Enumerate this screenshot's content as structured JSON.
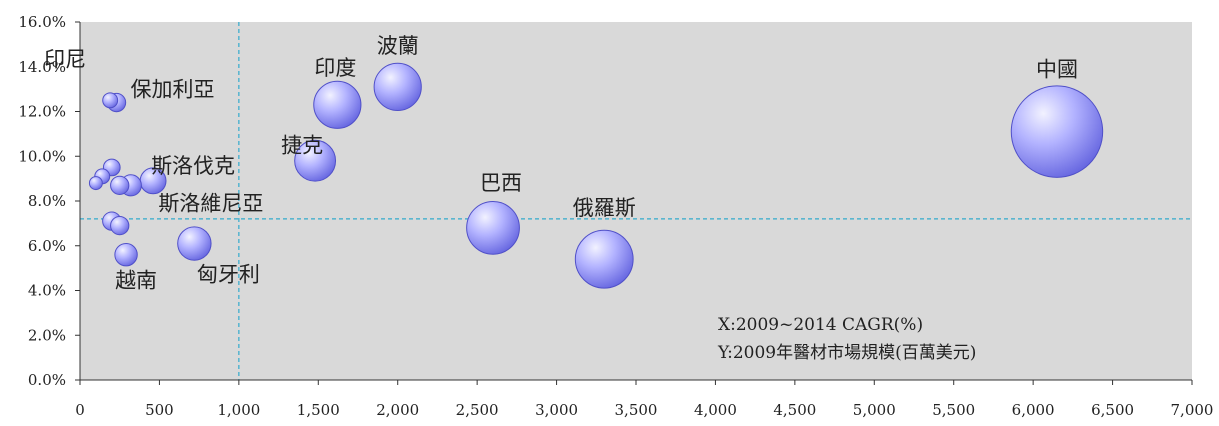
{
  "chart_data": {
    "type": "scatter",
    "bubble": true,
    "xlim": [
      0,
      7000
    ],
    "ylim": [
      0,
      16
    ],
    "x_ticks": [
      0,
      500,
      1000,
      1500,
      2000,
      2500,
      3000,
      3500,
      4000,
      4500,
      5000,
      5500,
      6000,
      6500,
      7000
    ],
    "x_tick_labels": [
      "0",
      "500",
      "1,000",
      "1,500",
      "2,000",
      "2,500",
      "3,000",
      "3,500",
      "4,000",
      "4,500",
      "5,000",
      "5,500",
      "6,000",
      "6,500",
      "7,000"
    ],
    "y_ticks": [
      0,
      2,
      4,
      6,
      8,
      10,
      12,
      14,
      16
    ],
    "y_tick_labels": [
      "0.0%",
      "2.0%",
      "4.0%",
      "6.0%",
      "8.0%",
      "10.0%",
      "12.0%",
      "14.0%",
      "16.0%"
    ],
    "ref_lines": {
      "x": 1000,
      "y": 7.2
    },
    "grid": false,
    "plot_background": "#d9d9d9",
    "bubble_color": "#9999ff",
    "ref_line_color": "#33aacc",
    "points": [
      {
        "label": "中國",
        "x": 6150,
        "y": 11.1,
        "size": 15
      },
      {
        "label": "俄羅斯",
        "x": 3300,
        "y": 5.4,
        "size": 6
      },
      {
        "label": "巴西",
        "x": 2600,
        "y": 6.8,
        "size": 5
      },
      {
        "label": "波蘭",
        "x": 2000,
        "y": 13.1,
        "size": 4
      },
      {
        "label": "印度",
        "x": 1620,
        "y": 12.3,
        "size": 4
      },
      {
        "label": "捷克",
        "x": 1480,
        "y": 9.8,
        "size": 3
      },
      {
        "label": "匈牙利",
        "x": 720,
        "y": 6.1,
        "size": 2
      },
      {
        "label": "斯洛伐克",
        "x": 460,
        "y": 8.9,
        "size": 1.2
      },
      {
        "label": "斯洛維尼亞",
        "x": 320,
        "y": 8.7,
        "size": 0.8
      },
      {
        "label": "越南",
        "x": 290,
        "y": 5.6,
        "size": 0.9
      },
      {
        "label": "保加利亞",
        "x": 230,
        "y": 12.4,
        "size": 0.6
      },
      {
        "label": "印尼",
        "x": 190,
        "y": 12.5,
        "size": 0.4
      },
      {
        "label": "",
        "x": 100,
        "y": 8.8,
        "size": 0.3
      },
      {
        "label": "",
        "x": 140,
        "y": 9.1,
        "size": 0.4
      },
      {
        "label": "",
        "x": 200,
        "y": 9.5,
        "size": 0.5
      },
      {
        "label": "",
        "x": 250,
        "y": 8.7,
        "size": 0.6
      },
      {
        "label": "",
        "x": 200,
        "y": 7.1,
        "size": 0.6
      },
      {
        "label": "",
        "x": 250,
        "y": 6.9,
        "size": 0.6
      }
    ],
    "annotations": [
      "X:2009~2014 CAGR(%)",
      "Y:2009年醫材市場規模(百萬美元)"
    ]
  }
}
